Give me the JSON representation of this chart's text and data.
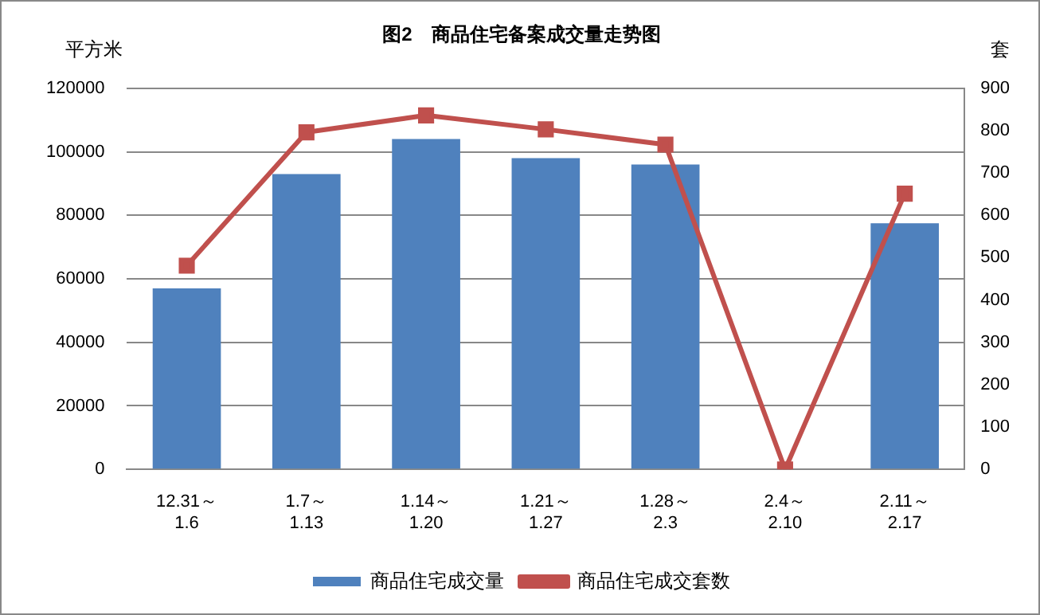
{
  "chart_data": {
    "type": "bar",
    "title": "图2　商品住宅备案成交量走势图",
    "ylabel": "平方米",
    "y2label": "套",
    "categories": [
      "12.31～\n1.6",
      "1.7～\n1.13",
      "1.14～\n1.20",
      "1.21～\n1.27",
      "1.28～\n2.3",
      "2.4～\n2.10",
      "2.11～\n2.17"
    ],
    "series": [
      {
        "name": "商品住宅成交量",
        "color": "#4f81bd",
        "values": [
          57000,
          93000,
          104000,
          98000,
          96000,
          0,
          77500
        ]
      },
      {
        "name": "商品住宅成交套数",
        "type": "line",
        "axis": "y2",
        "color": "#c0504d",
        "values": [
          481,
          796,
          836,
          803,
          767,
          0,
          651
        ]
      }
    ],
    "ylim": [
      0,
      120000
    ],
    "yticks": [
      0,
      20000,
      40000,
      60000,
      80000,
      100000,
      120000
    ],
    "y2lim": [
      0,
      900
    ],
    "y2ticks": [
      0,
      100,
      200,
      300,
      400,
      500,
      600,
      700,
      800,
      900
    ],
    "grid": "y",
    "legend": "bottom",
    "marker": "square",
    "line_style": "solid"
  }
}
